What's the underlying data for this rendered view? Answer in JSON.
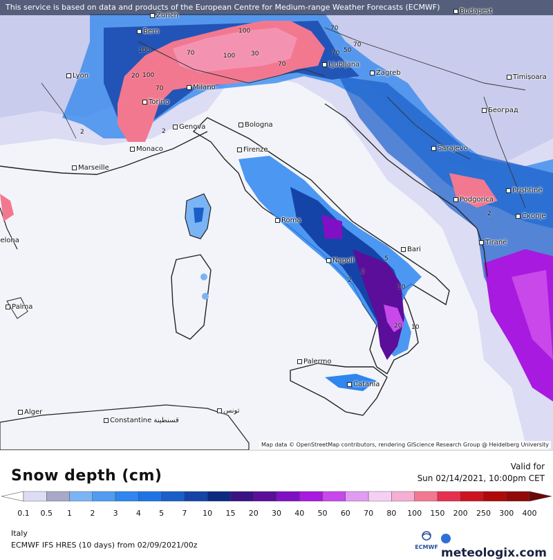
{
  "notice": "This service is based on data and products of the European Centre for Medium-range Weather Forecasts (ECMWF)",
  "attribution": "Map data © OpenStreetMap contributors, rendering GIScience Research Group @ Heidelberg University",
  "cities": [
    {
      "name": "Zurich"
    },
    {
      "name": "Bern"
    },
    {
      "name": "Budapest"
    },
    {
      "name": "Lyon"
    },
    {
      "name": "Ljubljana"
    },
    {
      "name": "Zagreb"
    },
    {
      "name": "Timișoara"
    },
    {
      "name": "Milano"
    },
    {
      "name": "Torino"
    },
    {
      "name": "Београд"
    },
    {
      "name": "Genova"
    },
    {
      "name": "Bologna"
    },
    {
      "name": "Monaco"
    },
    {
      "name": "Firenze"
    },
    {
      "name": "Sarajevo"
    },
    {
      "name": "Marseille"
    },
    {
      "name": "Prishtinë"
    },
    {
      "name": "Podgorica"
    },
    {
      "name": "Скопје"
    },
    {
      "name": "Roma"
    },
    {
      "name": "Barcelona"
    },
    {
      "name": "Bari"
    },
    {
      "name": "Tiranë"
    },
    {
      "name": "Napoli"
    },
    {
      "name": "Palma"
    },
    {
      "name": "Palermo"
    },
    {
      "name": "Catania"
    },
    {
      "name": "Alger"
    },
    {
      "name": "Constantine قسنطينة"
    },
    {
      "name": "تونس"
    }
  ],
  "contour_labels": [
    "100",
    "70",
    "100",
    "100",
    "70",
    "70",
    "100",
    "30",
    "70",
    "20",
    "70",
    "50",
    "70",
    "2",
    "2",
    "2",
    "2",
    "5",
    "10",
    "20",
    "10",
    "2"
  ],
  "legend": {
    "title": "Snow depth (cm)",
    "valid_label": "Valid for",
    "valid_time": "Sun 02/14/2021, 10:00pm CET",
    "scale": [
      {
        "label": "0.1",
        "color": "#dcdcf4"
      },
      {
        "label": "0.5",
        "color": "#a8a8c8"
      },
      {
        "label": "1",
        "color": "#7ab4f4"
      },
      {
        "label": "2",
        "color": "#4f9cf0"
      },
      {
        "label": "3",
        "color": "#2e86ee"
      },
      {
        "label": "4",
        "color": "#1e74e4"
      },
      {
        "label": "5",
        "color": "#1a5ec8"
      },
      {
        "label": "7",
        "color": "#1444a8"
      },
      {
        "label": "10",
        "color": "#0c2a80"
      },
      {
        "label": "15",
        "color": "#3a1284"
      },
      {
        "label": "20",
        "color": "#5a0e9a"
      },
      {
        "label": "30",
        "color": "#8010c4"
      },
      {
        "label": "40",
        "color": "#a81ae0"
      },
      {
        "label": "50",
        "color": "#c848ea"
      },
      {
        "label": "60",
        "color": "#e09cf2"
      },
      {
        "label": "70",
        "color": "#f6d0f4"
      },
      {
        "label": "80",
        "color": "#f6aed2"
      },
      {
        "label": "100",
        "color": "#f27890"
      },
      {
        "label": "150",
        "color": "#e63050"
      },
      {
        "label": "200",
        "color": "#cc1420"
      },
      {
        "label": "250",
        "color": "#ae0a0a"
      },
      {
        "label": "300",
        "color": "#900a0a"
      },
      {
        "label": "400",
        "color": "#6e0606"
      }
    ]
  },
  "footer": {
    "region": "Italy",
    "model": "ECMWF IFS HRES (10 days) from 02/09/2021/00z",
    "ecmwf_logo": "ECMWF",
    "brand": "meteologix.com"
  }
}
